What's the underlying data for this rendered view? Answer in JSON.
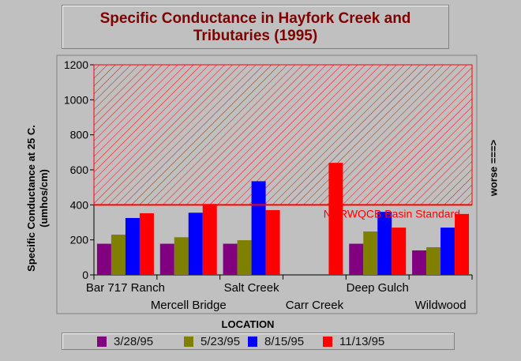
{
  "chart_data": {
    "type": "bar",
    "title_lines": [
      "Specific Conductance in Hayfork Creek and",
      "Tributaries  (1995)"
    ],
    "ylabel_lines": [
      "Specific Conductance  at 25 C.",
      "(umhos/cm)"
    ],
    "xlabel": "LOCATION",
    "right_label": "worse ===>",
    "ylim": [
      0,
      1200
    ],
    "yticks": [
      "0",
      "200",
      "400",
      "600",
      "800",
      "1000",
      "1200"
    ],
    "categories": [
      "Bar 717 Ranch",
      "Mercell Bridge",
      "Salt Creek",
      "Carr Creek",
      "Deep Gulch",
      "Wildwood"
    ],
    "series": [
      {
        "name": "3/28/95",
        "color": "#800080",
        "values": [
          178,
          178,
          178,
          null,
          178,
          140
        ]
      },
      {
        "name": "5/23/95",
        "color": "#808000",
        "values": [
          230,
          215,
          198,
          null,
          248,
          158
        ]
      },
      {
        "name": "8/15/95",
        "color": "#0000ff",
        "values": [
          325,
          355,
          535,
          null,
          360,
          270
        ]
      },
      {
        "name": "11/13/95",
        "color": "#ff0000",
        "values": [
          352,
          405,
          370,
          640,
          270,
          348
        ]
      }
    ],
    "standard": {
      "value": 400,
      "label": "NCRWQCB Basin Standard",
      "color": "#ff0000"
    },
    "grid": false,
    "legend": "bottom"
  }
}
